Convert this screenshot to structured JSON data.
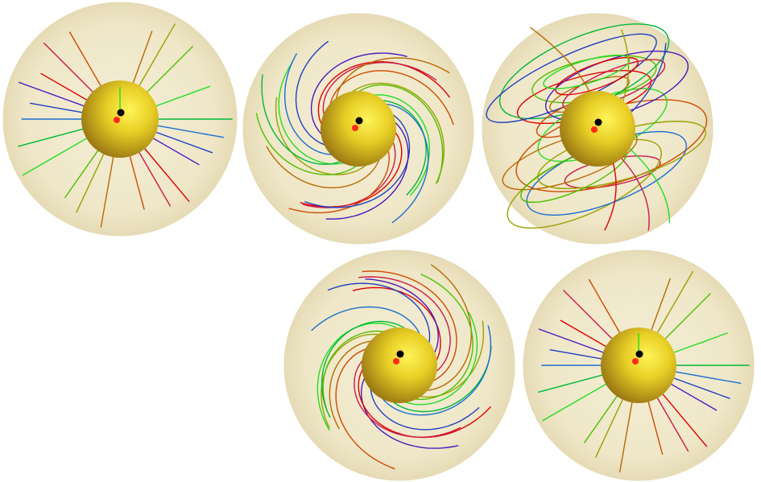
{
  "colors": {
    "background": "#ffffff",
    "outer_sphere": "#efe7c8",
    "outer_sphere_edge": "#e4d9b2",
    "inner_sphere_light": "#fff45a",
    "inner_sphere_mid": "#e2c420",
    "inner_sphere_dark": "#9c7a14",
    "marker_black": "#000000",
    "marker_red": "#ff2a1a",
    "line_palette": [
      "#e00000",
      "#cc1a4a",
      "#d04a00",
      "#b86a00",
      "#9aa000",
      "#4fbf00",
      "#22dd22",
      "#00b83a",
      "#1a6fd0",
      "#2040c0",
      "#4a18c0"
    ]
  },
  "panels": [
    {
      "id": "panel-1",
      "pattern": "radial"
    },
    {
      "id": "panel-2",
      "pattern": "spiral"
    },
    {
      "id": "panel-3",
      "pattern": "tilted-loops"
    },
    {
      "id": "panel-4",
      "pattern": "spiral"
    },
    {
      "id": "panel-5",
      "pattern": "radial"
    }
  ]
}
